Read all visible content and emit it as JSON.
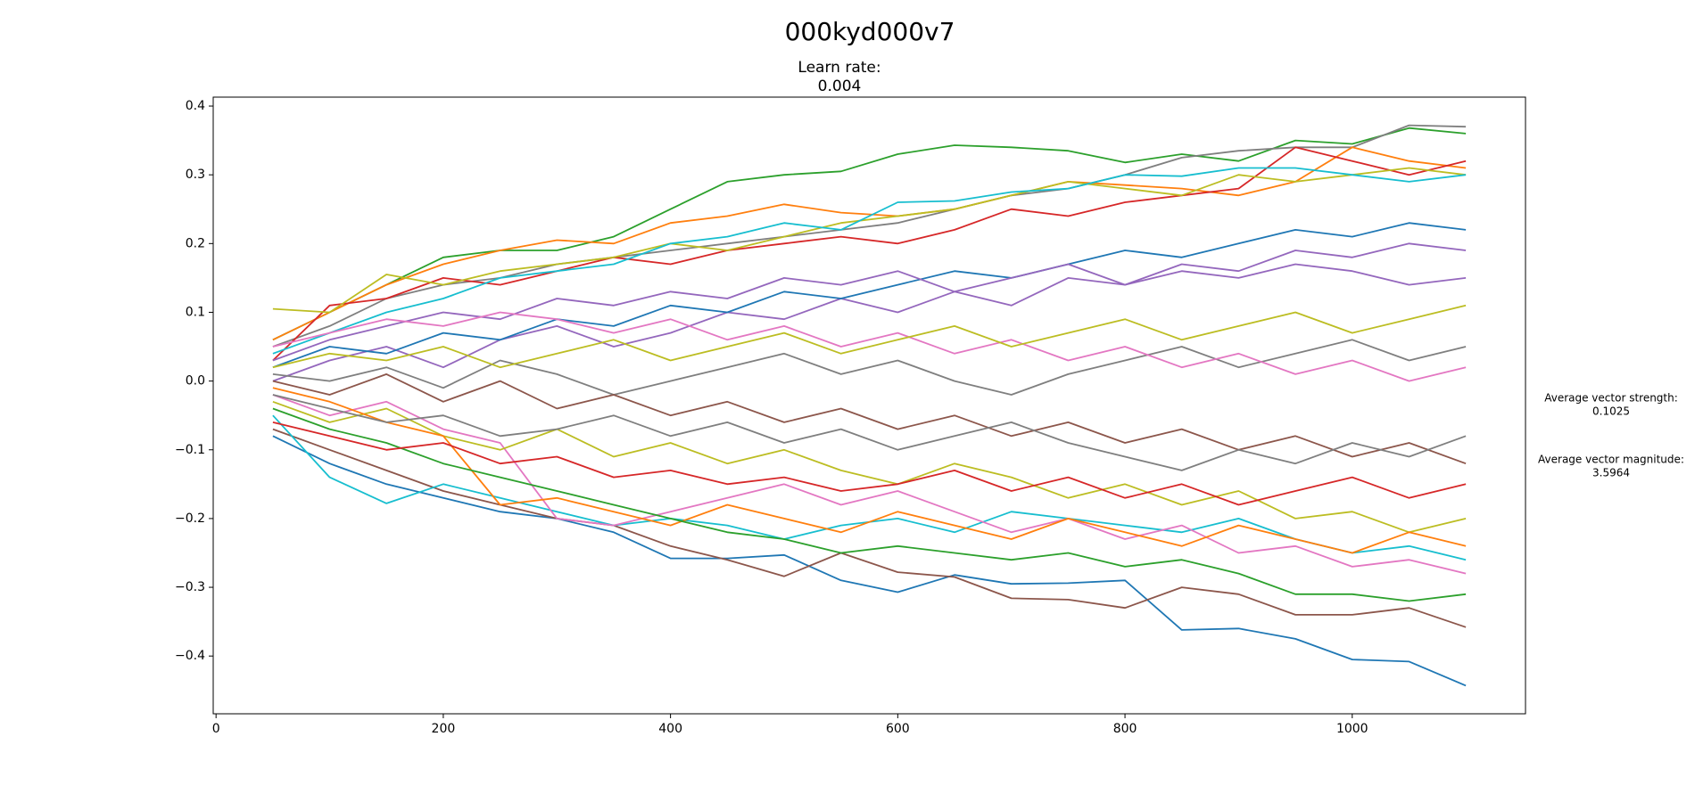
{
  "chart_data": {
    "type": "line",
    "title": "000kyd000v7",
    "subtitle": [
      "Learn rate:",
      0.004
    ],
    "annotations": [
      {
        "label": "Average vector strength:",
        "value": 0.1025
      },
      {
        "label": "Average vector magnitude:",
        "value": 3.5964
      }
    ],
    "x": [
      50,
      100,
      150,
      200,
      250,
      300,
      350,
      400,
      450,
      500,
      550,
      600,
      650,
      700,
      750,
      800,
      850,
      900,
      950,
      1000,
      1050,
      1100
    ],
    "xlim": [
      -2.5,
      1152.5
    ],
    "xticks": [
      0,
      200,
      400,
      600,
      800,
      1000
    ],
    "ylim": [
      -0.484,
      0.413
    ],
    "yticks": [
      {
        "value": -0.4,
        "label": "−0.4"
      },
      {
        "value": -0.3,
        "label": "−0.3"
      },
      {
        "value": -0.2,
        "label": "−0.2"
      },
      {
        "value": -0.1,
        "label": "−0.1"
      },
      {
        "value": 0,
        "label": "0.0"
      },
      0.1,
      0.2,
      0.3,
      0.4
    ],
    "grid": false,
    "series": [
      {
        "color": "#2ca02c",
        "values": [
          0.06,
          0.1,
          0.14,
          0.18,
          0.19,
          0.19,
          0.21,
          0.25,
          0.29,
          0.3,
          0.305,
          0.33,
          0.343,
          0.34,
          0.335,
          0.318,
          0.33,
          0.32,
          0.35,
          0.345,
          0.368,
          0.36
        ]
      },
      {
        "color": "#1f77b4",
        "values": [
          -0.08,
          -0.12,
          -0.15,
          -0.17,
          -0.19,
          -0.2,
          -0.22,
          -0.258,
          -0.258,
          -0.253,
          -0.29,
          -0.307,
          -0.282,
          -0.295,
          -0.294,
          -0.29,
          -0.362,
          -0.36,
          -0.375,
          -0.405,
          -0.408,
          -0.443
        ]
      },
      {
        "color": "#8c564b",
        "values": [
          -0.07,
          -0.1,
          -0.13,
          -0.16,
          -0.18,
          -0.2,
          -0.21,
          -0.24,
          -0.26,
          -0.284,
          -0.25,
          -0.278,
          -0.285,
          -0.316,
          -0.318,
          -0.33,
          -0.3,
          -0.31,
          -0.34,
          -0.34,
          -0.33,
          -0.358
        ]
      },
      {
        "color": "#7f7f7f",
        "values": [
          0.05,
          0.08,
          0.12,
          0.14,
          0.15,
          0.17,
          0.18,
          0.19,
          0.2,
          0.21,
          0.22,
          0.23,
          0.25,
          0.27,
          0.28,
          0.3,
          0.325,
          0.335,
          0.34,
          0.34,
          0.372,
          0.37
        ]
      },
      {
        "color": "#ff7f0e",
        "values": [
          0.06,
          0.1,
          0.14,
          0.17,
          0.19,
          0.205,
          0.2,
          0.23,
          0.24,
          0.257,
          0.245,
          0.24,
          0.25,
          0.27,
          0.29,
          0.285,
          0.28,
          0.27,
          0.29,
          0.34,
          0.32,
          0.31
        ]
      },
      {
        "color": "#17becf",
        "values": [
          -0.05,
          -0.14,
          -0.178,
          -0.15,
          -0.17,
          -0.19,
          -0.21,
          -0.2,
          -0.21,
          -0.23,
          -0.21,
          -0.2,
          -0.22,
          -0.19,
          -0.2,
          -0.21,
          -0.22,
          -0.2,
          -0.23,
          -0.25,
          -0.24,
          -0.26
        ]
      },
      {
        "color": "#d62728",
        "values": [
          0.03,
          0.11,
          0.12,
          0.15,
          0.14,
          0.16,
          0.18,
          0.17,
          0.19,
          0.2,
          0.21,
          0.2,
          0.22,
          0.25,
          0.24,
          0.26,
          0.27,
          0.28,
          0.34,
          0.32,
          0.3,
          0.32
        ]
      },
      {
        "color": "#bcbd22",
        "values": [
          0.105,
          0.1,
          0.155,
          0.14,
          0.16,
          0.17,
          0.18,
          0.2,
          0.19,
          0.21,
          0.23,
          0.24,
          0.25,
          0.27,
          0.29,
          0.28,
          0.27,
          0.3,
          0.29,
          0.3,
          0.31,
          0.3
        ]
      },
      {
        "color": "#9467bd",
        "values": [
          0.0,
          0.03,
          0.05,
          0.02,
          0.06,
          0.08,
          0.05,
          0.07,
          0.1,
          0.09,
          0.12,
          0.1,
          0.13,
          0.11,
          0.15,
          0.14,
          0.17,
          0.16,
          0.19,
          0.18,
          0.2,
          0.19
        ]
      },
      {
        "color": "#e377c2",
        "values": [
          -0.02,
          -0.05,
          -0.03,
          -0.07,
          -0.09,
          -0.2,
          -0.21,
          -0.19,
          -0.17,
          -0.15,
          -0.18,
          -0.16,
          -0.19,
          -0.22,
          -0.2,
          -0.23,
          -0.21,
          -0.25,
          -0.24,
          -0.27,
          -0.26,
          -0.28
        ]
      },
      {
        "color": "#7f7f7f",
        "values": [
          0.01,
          0.0,
          0.02,
          -0.01,
          0.03,
          0.01,
          -0.02,
          0.0,
          0.02,
          0.04,
          0.01,
          0.03,
          0.0,
          -0.02,
          0.01,
          0.03,
          0.05,
          0.02,
          0.04,
          0.06,
          0.03,
          0.05
        ]
      },
      {
        "color": "#bcbd22",
        "values": [
          -0.03,
          -0.06,
          -0.04,
          -0.08,
          -0.1,
          -0.07,
          -0.11,
          -0.09,
          -0.12,
          -0.1,
          -0.13,
          -0.15,
          -0.12,
          -0.14,
          -0.17,
          -0.15,
          -0.18,
          -0.16,
          -0.2,
          -0.19,
          -0.22,
          -0.2
        ]
      },
      {
        "color": "#17becf",
        "values": [
          0.04,
          0.07,
          0.1,
          0.12,
          0.15,
          0.16,
          0.17,
          0.2,
          0.21,
          0.23,
          0.22,
          0.26,
          0.262,
          0.275,
          0.28,
          0.3,
          0.298,
          0.31,
          0.31,
          0.3,
          0.29,
          0.3
        ]
      },
      {
        "color": "#1f77b4",
        "values": [
          0.02,
          0.05,
          0.04,
          0.07,
          0.06,
          0.09,
          0.08,
          0.11,
          0.1,
          0.13,
          0.12,
          0.14,
          0.16,
          0.15,
          0.17,
          0.19,
          0.18,
          0.2,
          0.22,
          0.21,
          0.23,
          0.22
        ]
      },
      {
        "color": "#ff7f0e",
        "values": [
          -0.01,
          -0.03,
          -0.06,
          -0.08,
          -0.18,
          -0.17,
          -0.19,
          -0.21,
          -0.18,
          -0.2,
          -0.22,
          -0.19,
          -0.21,
          -0.23,
          -0.2,
          -0.22,
          -0.24,
          -0.21,
          -0.23,
          -0.25,
          -0.22,
          -0.24
        ]
      },
      {
        "color": "#2ca02c",
        "values": [
          -0.04,
          -0.07,
          -0.09,
          -0.12,
          -0.14,
          -0.16,
          -0.18,
          -0.2,
          -0.22,
          -0.23,
          -0.25,
          -0.24,
          -0.25,
          -0.26,
          -0.25,
          -0.27,
          -0.26,
          -0.28,
          -0.31,
          -0.31,
          -0.32,
          -0.31
        ]
      },
      {
        "color": "#d62728",
        "values": [
          -0.06,
          -0.08,
          -0.1,
          -0.09,
          -0.12,
          -0.11,
          -0.14,
          -0.13,
          -0.15,
          -0.14,
          -0.16,
          -0.15,
          -0.13,
          -0.16,
          -0.14,
          -0.17,
          -0.15,
          -0.18,
          -0.16,
          -0.14,
          -0.17,
          -0.15
        ]
      },
      {
        "color": "#9467bd",
        "values": [
          0.03,
          0.06,
          0.08,
          0.1,
          0.09,
          0.12,
          0.11,
          0.13,
          0.12,
          0.15,
          0.14,
          0.16,
          0.13,
          0.15,
          0.17,
          0.14,
          0.16,
          0.15,
          0.17,
          0.16,
          0.14,
          0.15
        ]
      },
      {
        "color": "#8c564b",
        "values": [
          0.0,
          -0.02,
          0.01,
          -0.03,
          0.0,
          -0.04,
          -0.02,
          -0.05,
          -0.03,
          -0.06,
          -0.04,
          -0.07,
          -0.05,
          -0.08,
          -0.06,
          -0.09,
          -0.07,
          -0.1,
          -0.08,
          -0.11,
          -0.09,
          -0.12
        ]
      },
      {
        "color": "#e377c2",
        "values": [
          0.05,
          0.07,
          0.09,
          0.08,
          0.1,
          0.09,
          0.07,
          0.09,
          0.06,
          0.08,
          0.05,
          0.07,
          0.04,
          0.06,
          0.03,
          0.05,
          0.02,
          0.04,
          0.01,
          0.03,
          0.0,
          0.02
        ]
      },
      {
        "color": "#7f7f7f",
        "values": [
          -0.02,
          -0.04,
          -0.06,
          -0.05,
          -0.08,
          -0.07,
          -0.05,
          -0.08,
          -0.06,
          -0.09,
          -0.07,
          -0.1,
          -0.08,
          -0.06,
          -0.09,
          -0.11,
          -0.13,
          -0.1,
          -0.12,
          -0.09,
          -0.11,
          -0.08
        ]
      },
      {
        "color": "#bcbd22",
        "values": [
          0.02,
          0.04,
          0.03,
          0.05,
          0.02,
          0.04,
          0.06,
          0.03,
          0.05,
          0.07,
          0.04,
          0.06,
          0.08,
          0.05,
          0.07,
          0.09,
          0.06,
          0.08,
          0.1,
          0.07,
          0.09,
          0.11
        ]
      }
    ]
  }
}
